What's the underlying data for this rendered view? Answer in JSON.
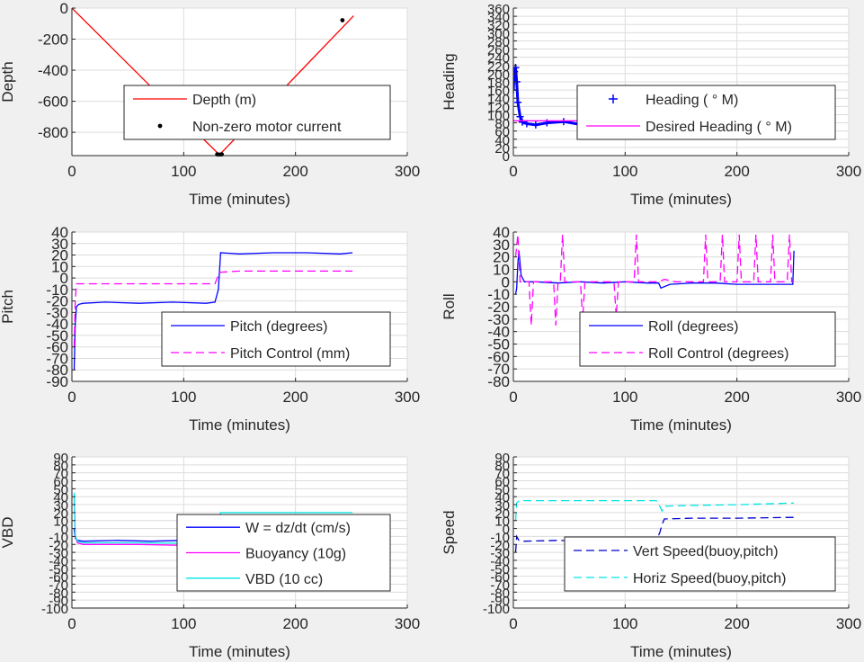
{
  "chart_data": [
    {
      "type": "line",
      "ylabel": "Depth",
      "xlabel": "Time (minutes)",
      "xlim": [
        0,
        300
      ],
      "ylim": [
        -950,
        0
      ],
      "xticks": [
        "0",
        "100",
        "200",
        "300"
      ],
      "yticks": [
        "0",
        "-200",
        "-400",
        "-600",
        "-800"
      ],
      "yticks_values": [
        0,
        -200,
        -400,
        -600,
        -800
      ],
      "grid": true,
      "legend_position": "center",
      "series": [
        {
          "name": "Depth (m)",
          "style": "line",
          "color": "#ff0000",
          "x": [
            0,
            30,
            60,
            90,
            120,
            132,
            150,
            180,
            210,
            240,
            252
          ],
          "y": [
            0,
            -215,
            -430,
            -645,
            -860,
            -945,
            -810,
            -590,
            -365,
            -140,
            -50
          ]
        },
        {
          "name": "Non-zero motor current",
          "style": "dot",
          "color": "#000000",
          "x": [
            130,
            131,
            132,
            133,
            134,
            242
          ],
          "y": [
            -942,
            -944,
            -945,
            -944,
            -942,
            -78
          ]
        }
      ]
    },
    {
      "type": "line",
      "ylabel": "Heading",
      "xlabel": "Time (minutes)",
      "xlim": [
        0,
        300
      ],
      "ylim": [
        0,
        360
      ],
      "xticks": [
        "0",
        "100",
        "200",
        "300"
      ],
      "yticks": [
        "0",
        "20",
        "40",
        "60",
        "80",
        "100",
        "120",
        "140",
        "160",
        "180",
        "200",
        "220",
        "240",
        "260",
        "280",
        "300",
        "320",
        "340",
        "360"
      ],
      "yticks_values": [
        0,
        20,
        40,
        60,
        80,
        100,
        120,
        140,
        160,
        180,
        200,
        220,
        240,
        260,
        280,
        300,
        320,
        340,
        360
      ],
      "grid": true,
      "legend_position": "right",
      "series": [
        {
          "name": "Heading ( ° M)",
          "style": "plus",
          "color": "#0000ff",
          "x": [
            0,
            1,
            2,
            3,
            4,
            6,
            8,
            12,
            20,
            30,
            45,
            60,
            75,
            90,
            105,
            120,
            135,
            150,
            165,
            180,
            195,
            210,
            225,
            240,
            250
          ],
          "y": [
            160,
            205,
            215,
            180,
            130,
            95,
            82,
            78,
            75,
            80,
            83,
            76,
            85,
            79,
            88,
            82,
            86,
            77,
            90,
            84,
            80,
            88,
            76,
            85,
            82
          ]
        },
        {
          "name": "Desired Heading ( ° M)",
          "style": "line",
          "color": "#ff00ff",
          "x": [
            0,
            250
          ],
          "y": [
            85,
            85
          ]
        }
      ]
    },
    {
      "type": "line",
      "ylabel": "Pitch",
      "xlabel": "Time (minutes)",
      "xlim": [
        0,
        300
      ],
      "ylim": [
        -90,
        40
      ],
      "xticks": [
        "0",
        "100",
        "200",
        "300"
      ],
      "yticks": [
        "40",
        "30",
        "20",
        "10",
        "0",
        "-10",
        "-20",
        "-30",
        "-40",
        "-50",
        "-60",
        "-70",
        "-80",
        "-90"
      ],
      "yticks_values": [
        40,
        30,
        20,
        10,
        0,
        -10,
        -20,
        -30,
        -40,
        -50,
        -60,
        -70,
        -80,
        -90
      ],
      "grid": true,
      "legend_position": "lower-right",
      "series": [
        {
          "name": "Pitch (degrees)",
          "style": "line",
          "color": "#0000ff",
          "x": [
            2,
            3,
            4,
            6,
            10,
            30,
            60,
            90,
            120,
            128,
            131,
            133,
            150,
            180,
            210,
            240,
            251
          ],
          "y": [
            -80,
            -40,
            -25,
            -23,
            -22,
            -21,
            -22,
            -21,
            -22,
            -21,
            -10,
            22,
            21,
            22,
            22,
            21,
            22
          ]
        },
        {
          "name": "Pitch Control (mm)",
          "style": "dashed",
          "color": "#ff00ff",
          "x": [
            2,
            3,
            4,
            10,
            60,
            128,
            130,
            132,
            150,
            180,
            210,
            251
          ],
          "y": [
            -60,
            -20,
            -5,
            -5,
            -5,
            -5,
            0,
            5,
            6,
            6,
            6,
            6
          ]
        }
      ]
    },
    {
      "type": "line",
      "ylabel": "Roll",
      "xlabel": "Time (minutes)",
      "xlim": [
        0,
        300
      ],
      "ylim": [
        -80,
        40
      ],
      "xticks": [
        "0",
        "100",
        "200",
        "300"
      ],
      "yticks": [
        "40",
        "30",
        "20",
        "10",
        "0",
        "-10",
        "-20",
        "-30",
        "-40",
        "-50",
        "-60",
        "-70",
        "-80"
      ],
      "yticks_values": [
        40,
        30,
        20,
        10,
        0,
        -10,
        -20,
        -30,
        -40,
        -50,
        -60,
        -70,
        -80
      ],
      "grid": true,
      "legend_position": "lower-right",
      "series": [
        {
          "name": "Roll (degrees)",
          "style": "line",
          "color": "#0000ff",
          "x": [
            2,
            3,
            4,
            5,
            7,
            10,
            20,
            40,
            60,
            80,
            100,
            120,
            130,
            132,
            140,
            160,
            180,
            200,
            220,
            240,
            250,
            251
          ],
          "y": [
            -10,
            -5,
            15,
            25,
            5,
            0,
            0,
            -1,
            0,
            -1,
            0,
            -1,
            -1,
            -5,
            -2,
            -1,
            -1,
            -2,
            -2,
            -2,
            -2,
            25
          ]
        },
        {
          "name": "Roll Control (degrees)",
          "style": "dashed",
          "color": "#ff00ff",
          "x": [
            2,
            4,
            6,
            10,
            14,
            16,
            18,
            36,
            38,
            40,
            42,
            44,
            46,
            60,
            62,
            64,
            90,
            92,
            94,
            108,
            110,
            112,
            130,
            135,
            145,
            170,
            172,
            174,
            185,
            187,
            189,
            200,
            202,
            204,
            215,
            217,
            219,
            230,
            232,
            234,
            245,
            247,
            249,
            250
          ],
          "y": [
            20,
            38,
            0,
            0,
            0,
            -35,
            0,
            0,
            -35,
            0,
            0,
            38,
            0,
            0,
            -30,
            0,
            0,
            -28,
            0,
            0,
            38,
            0,
            0,
            2,
            0,
            0,
            38,
            0,
            0,
            38,
            0,
            0,
            38,
            0,
            0,
            38,
            0,
            0,
            38,
            0,
            0,
            38,
            0,
            0
          ]
        }
      ]
    },
    {
      "type": "line",
      "ylabel": "VBD",
      "xlabel": "Time (minutes)",
      "xlim": [
        0,
        300
      ],
      "ylim": [
        -100,
        90
      ],
      "xticks": [
        "0",
        "100",
        "200",
        "300"
      ],
      "yticks": [
        "90",
        "80",
        "70",
        "60",
        "50",
        "40",
        "30",
        "20",
        "10",
        "0",
        "-10",
        "-20",
        "-30",
        "-40",
        "-50",
        "-60",
        "-70",
        "-80",
        "-90",
        "-100"
      ],
      "yticks_values": [
        90,
        80,
        70,
        60,
        50,
        40,
        30,
        20,
        10,
        0,
        -10,
        -20,
        -30,
        -40,
        -50,
        -60,
        -70,
        -80,
        -90,
        -100
      ],
      "grid": true,
      "legend_position": "lower-right",
      "series": [
        {
          "name": "W = dz/dt (cm/s)",
          "style": "line",
          "color": "#0000ff",
          "x": [
            2,
            3,
            5,
            10,
            40,
            70,
            100,
            128,
            131,
            133,
            160,
            200,
            251
          ],
          "y": [
            0,
            -12,
            -15,
            -16,
            -15,
            -16,
            -15,
            -15,
            -5,
            13,
            14,
            13,
            14
          ]
        },
        {
          "name": "Buoyancy (10g)",
          "style": "line",
          "color": "#ff00ff",
          "x": [
            2,
            3,
            5,
            10,
            60,
            128,
            131,
            133,
            200,
            251
          ],
          "y": [
            40,
            -10,
            -18,
            -20,
            -20,
            -22,
            0,
            17,
            17,
            17
          ]
        },
        {
          "name": "VBD (10 cc)",
          "style": "line",
          "color": "#00e5e5",
          "x": [
            2,
            3,
            5,
            10,
            60,
            128,
            131,
            133,
            200,
            251
          ],
          "y": [
            45,
            -10,
            -16,
            -18,
            -18,
            -19,
            0,
            20,
            20,
            20
          ]
        }
      ]
    },
    {
      "type": "line",
      "ylabel": "Speed",
      "xlabel": "Time (minutes)",
      "xlim": [
        0,
        300
      ],
      "ylim": [
        -100,
        90
      ],
      "xticks": [
        "0",
        "100",
        "200",
        "300"
      ],
      "yticks": [
        "90",
        "80",
        "70",
        "60",
        "50",
        "40",
        "30",
        "20",
        "10",
        "0",
        "-10",
        "-20",
        "-30",
        "-40",
        "-50",
        "-60",
        "-70",
        "-80",
        "-90",
        "-100"
      ],
      "yticks_values": [
        90,
        80,
        70,
        60,
        50,
        40,
        30,
        20,
        10,
        0,
        -10,
        -20,
        -30,
        -40,
        -50,
        -60,
        -70,
        -80,
        -90,
        -100
      ],
      "grid": true,
      "legend_position": "lower-right",
      "series": [
        {
          "name": "Vert Speed(buoy,pitch)",
          "style": "dashed",
          "color": "#0000cc",
          "x": [
            2,
            3,
            5,
            10,
            40,
            70,
            100,
            128,
            131,
            133,
            135,
            160,
            200,
            251
          ],
          "y": [
            -30,
            -10,
            -15,
            -16,
            -15,
            -16,
            -15,
            -15,
            -5,
            5,
            12,
            13,
            13,
            14
          ]
        },
        {
          "name": "Horiz Speed(buoy,pitch)",
          "style": "dashed",
          "color": "#00e5e5",
          "x": [
            2,
            3,
            5,
            10,
            60,
            128,
            131,
            133,
            135,
            160,
            200,
            251
          ],
          "y": [
            10,
            32,
            35,
            35,
            35,
            35,
            28,
            22,
            28,
            29,
            30,
            32
          ]
        }
      ]
    }
  ]
}
